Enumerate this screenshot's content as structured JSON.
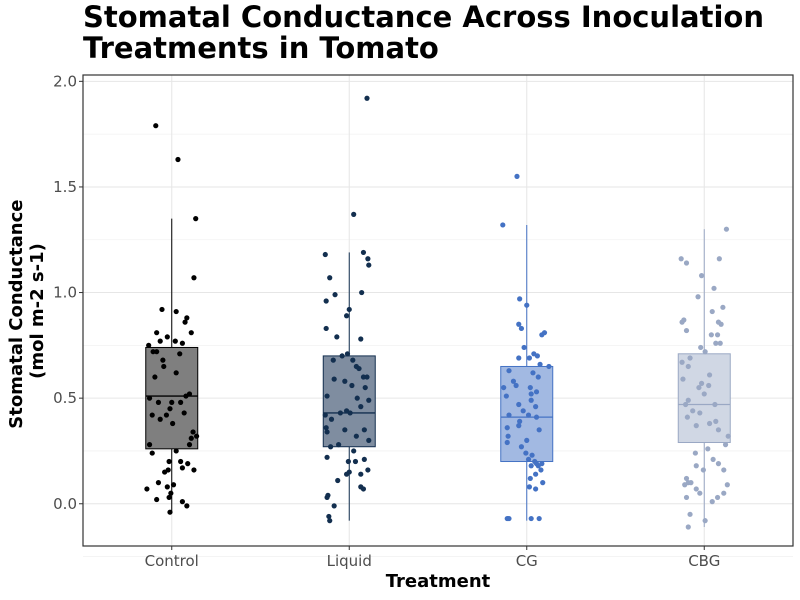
{
  "chart_data": {
    "type": "box",
    "title": "Stomatal Conductance Across Inoculation Treatments in Tomato",
    "xlabel": "Treatment",
    "ylabel": [
      "Stomatal Conductance",
      "(mol m-2 s-1)"
    ],
    "ylim": [
      -0.2,
      2.03
    ],
    "yticks": [
      0.0,
      0.5,
      1.0,
      1.5,
      2.0
    ],
    "ytick_labels": [
      "0.0",
      "0.5",
      "1.0",
      "1.5",
      "2.0"
    ],
    "grid": true,
    "legend": "none",
    "categories": [
      "Control",
      "Liquid",
      "CG",
      "CBG"
    ],
    "series": [
      {
        "color": "#000000",
        "box_fill": "#7f7f7f",
        "line": "#000000",
        "q1": 0.26,
        "median": 0.51,
        "q3": 0.74,
        "whisker_low": -0.04,
        "whisker_high": 1.35,
        "points": [
          {
            "x": -0.18,
            "y": 1.79
          },
          {
            "x": 0.07,
            "y": 1.63
          },
          {
            "x": 0.27,
            "y": 1.35
          },
          {
            "x": 0.25,
            "y": 1.07
          },
          {
            "x": -0.11,
            "y": 0.92
          },
          {
            "x": 0.05,
            "y": 0.91
          },
          {
            "x": 0.17,
            "y": 0.88
          },
          {
            "x": 0.15,
            "y": 0.86
          },
          {
            "x": 0.22,
            "y": 0.81
          },
          {
            "x": -0.17,
            "y": 0.81
          },
          {
            "x": -0.05,
            "y": 0.79
          },
          {
            "x": -0.13,
            "y": 0.77
          },
          {
            "x": 0.04,
            "y": 0.77
          },
          {
            "x": 0.12,
            "y": 0.76
          },
          {
            "x": -0.26,
            "y": 0.75
          },
          {
            "x": 0.09,
            "y": 0.71
          },
          {
            "x": -0.21,
            "y": 0.72
          },
          {
            "x": -0.17,
            "y": 0.72
          },
          {
            "x": -0.1,
            "y": 0.68
          },
          {
            "x": -0.09,
            "y": 0.65
          },
          {
            "x": 0.05,
            "y": 0.62
          },
          {
            "x": -0.19,
            "y": 0.6
          },
          {
            "x": 0.2,
            "y": 0.52
          },
          {
            "x": 0.16,
            "y": 0.51
          },
          {
            "x": -0.25,
            "y": 0.5
          },
          {
            "x": -0.15,
            "y": 0.48
          },
          {
            "x": 0.0,
            "y": 0.48
          },
          {
            "x": 0.1,
            "y": 0.48
          },
          {
            "x": -0.02,
            "y": 0.45
          },
          {
            "x": -0.22,
            "y": 0.42
          },
          {
            "x": 0.14,
            "y": 0.43
          },
          {
            "x": -0.06,
            "y": 0.42
          },
          {
            "x": -0.13,
            "y": 0.4
          },
          {
            "x": 0.01,
            "y": 0.38
          },
          {
            "x": 0.24,
            "y": 0.34
          },
          {
            "x": 0.28,
            "y": 0.32
          },
          {
            "x": 0.22,
            "y": 0.31
          },
          {
            "x": -0.25,
            "y": 0.28
          },
          {
            "x": 0.2,
            "y": 0.28
          },
          {
            "x": 0.05,
            "y": 0.25
          },
          {
            "x": -0.22,
            "y": 0.24
          },
          {
            "x": -0.03,
            "y": 0.2
          },
          {
            "x": 0.1,
            "y": 0.2
          },
          {
            "x": 0.18,
            "y": 0.19
          },
          {
            "x": -0.04,
            "y": 0.16
          },
          {
            "x": 0.12,
            "y": 0.17
          },
          {
            "x": 0.25,
            "y": 0.16
          },
          {
            "x": -0.08,
            "y": 0.15
          },
          {
            "x": -0.15,
            "y": 0.1
          },
          {
            "x": -0.05,
            "y": 0.08
          },
          {
            "x": 0.02,
            "y": 0.09
          },
          {
            "x": -0.28,
            "y": 0.07
          },
          {
            "x": -0.01,
            "y": 0.05
          },
          {
            "x": -0.03,
            "y": 0.03
          },
          {
            "x": -0.17,
            "y": 0.02
          },
          {
            "x": -0.02,
            "y": -0.04
          },
          {
            "x": 0.17,
            "y": -0.01
          },
          {
            "x": 0.12,
            "y": 0.01
          }
        ]
      },
      {
        "color": "#132f4f",
        "box_fill": "#7f8da0",
        "line": "#132f4f",
        "q1": 0.27,
        "median": 0.43,
        "q3": 0.7,
        "whisker_low": -0.08,
        "whisker_high": 1.19,
        "points": [
          {
            "x": 0.2,
            "y": 1.92
          },
          {
            "x": 0.05,
            "y": 1.37
          },
          {
            "x": -0.27,
            "y": 1.18
          },
          {
            "x": 0.16,
            "y": 1.19
          },
          {
            "x": 0.21,
            "y": 1.16
          },
          {
            "x": 0.22,
            "y": 1.13
          },
          {
            "x": -0.22,
            "y": 1.07
          },
          {
            "x": 0.14,
            "y": 1.0
          },
          {
            "x": -0.16,
            "y": 0.99
          },
          {
            "x": -0.26,
            "y": 0.96
          },
          {
            "x": 0.0,
            "y": 0.92
          },
          {
            "x": -0.03,
            "y": 0.89
          },
          {
            "x": -0.26,
            "y": 0.83
          },
          {
            "x": 0.13,
            "y": 0.78
          },
          {
            "x": -0.14,
            "y": 0.79
          },
          {
            "x": -0.02,
            "y": 0.71
          },
          {
            "x": -0.08,
            "y": 0.7
          },
          {
            "x": 0.04,
            "y": 0.68
          },
          {
            "x": -0.18,
            "y": 0.68
          },
          {
            "x": 0.08,
            "y": 0.65
          },
          {
            "x": 0.11,
            "y": 0.64
          },
          {
            "x": 0.2,
            "y": 0.6
          },
          {
            "x": 0.16,
            "y": 0.6
          },
          {
            "x": -0.17,
            "y": 0.59
          },
          {
            "x": -0.05,
            "y": 0.58
          },
          {
            "x": 0.03,
            "y": 0.56
          },
          {
            "x": 0.18,
            "y": 0.55
          },
          {
            "x": -0.25,
            "y": 0.51
          },
          {
            "x": 0.09,
            "y": 0.5
          },
          {
            "x": 0.22,
            "y": 0.49
          },
          {
            "x": 0.13,
            "y": 0.46
          },
          {
            "x": -0.03,
            "y": 0.44
          },
          {
            "x": -0.1,
            "y": 0.43
          },
          {
            "x": 0.01,
            "y": 0.43
          },
          {
            "x": -0.27,
            "y": 0.42
          },
          {
            "x": -0.2,
            "y": 0.4
          },
          {
            "x": -0.26,
            "y": 0.36
          },
          {
            "x": 0.17,
            "y": 0.35
          },
          {
            "x": -0.05,
            "y": 0.35
          },
          {
            "x": -0.25,
            "y": 0.34
          },
          {
            "x": 0.08,
            "y": 0.32
          },
          {
            "x": 0.22,
            "y": 0.3
          },
          {
            "x": -0.12,
            "y": 0.28
          },
          {
            "x": -0.21,
            "y": 0.27
          },
          {
            "x": 0.05,
            "y": 0.25
          },
          {
            "x": -0.25,
            "y": 0.22
          },
          {
            "x": 0.17,
            "y": 0.21
          },
          {
            "x": 0.07,
            "y": 0.2
          },
          {
            "x": -0.01,
            "y": 0.2
          },
          {
            "x": 0.21,
            "y": 0.16
          },
          {
            "x": 0.0,
            "y": 0.15
          },
          {
            "x": -0.03,
            "y": 0.14
          },
          {
            "x": 0.13,
            "y": 0.14
          },
          {
            "x": -0.13,
            "y": 0.11
          },
          {
            "x": 0.13,
            "y": 0.08
          },
          {
            "x": 0.16,
            "y": 0.07
          },
          {
            "x": -0.24,
            "y": 0.04
          },
          {
            "x": -0.25,
            "y": 0.03
          },
          {
            "x": -0.17,
            "y": -0.01
          },
          {
            "x": -0.23,
            "y": -0.06
          },
          {
            "x": -0.22,
            "y": -0.08
          }
        ]
      },
      {
        "color": "#4472c4",
        "box_fill": "#a2b9e2",
        "line": "#4472c4",
        "q1": 0.2,
        "median": 0.41,
        "q3": 0.65,
        "whisker_low": -0.08,
        "whisker_high": 1.32,
        "points": [
          {
            "x": -0.11,
            "y": 1.55
          },
          {
            "x": -0.27,
            "y": 1.32
          },
          {
            "x": -0.08,
            "y": 0.97
          },
          {
            "x": 0.0,
            "y": 0.94
          },
          {
            "x": 0.2,
            "y": 0.81
          },
          {
            "x": 0.17,
            "y": 0.8
          },
          {
            "x": -0.06,
            "y": 0.83
          },
          {
            "x": -0.09,
            "y": 0.85
          },
          {
            "x": -0.03,
            "y": 0.74
          },
          {
            "x": 0.08,
            "y": 0.71
          },
          {
            "x": 0.12,
            "y": 0.7
          },
          {
            "x": -0.09,
            "y": 0.69
          },
          {
            "x": 0.03,
            "y": 0.69
          },
          {
            "x": 0.15,
            "y": 0.66
          },
          {
            "x": 0.25,
            "y": 0.65
          },
          {
            "x": -0.2,
            "y": 0.63
          },
          {
            "x": 0.07,
            "y": 0.62
          },
          {
            "x": 0.13,
            "y": 0.6
          },
          {
            "x": -0.15,
            "y": 0.58
          },
          {
            "x": -0.12,
            "y": 0.56
          },
          {
            "x": -0.26,
            "y": 0.55
          },
          {
            "x": 0.04,
            "y": 0.55
          },
          {
            "x": 0.11,
            "y": 0.53
          },
          {
            "x": 0.05,
            "y": 0.52
          },
          {
            "x": -0.23,
            "y": 0.51
          },
          {
            "x": 0.05,
            "y": 0.49
          },
          {
            "x": -0.09,
            "y": 0.47
          },
          {
            "x": 0.1,
            "y": 0.46
          },
          {
            "x": -0.04,
            "y": 0.44
          },
          {
            "x": 0.02,
            "y": 0.42
          },
          {
            "x": -0.2,
            "y": 0.42
          },
          {
            "x": 0.11,
            "y": 0.41
          },
          {
            "x": -0.08,
            "y": 0.39
          },
          {
            "x": -0.09,
            "y": 0.37
          },
          {
            "x": -0.22,
            "y": 0.36
          },
          {
            "x": 0.14,
            "y": 0.35
          },
          {
            "x": -0.21,
            "y": 0.32
          },
          {
            "x": 0.0,
            "y": 0.3
          },
          {
            "x": -0.22,
            "y": 0.29
          },
          {
            "x": -0.06,
            "y": 0.27
          },
          {
            "x": -0.01,
            "y": 0.24
          },
          {
            "x": 0.06,
            "y": 0.23
          },
          {
            "x": 0.02,
            "y": 0.21
          },
          {
            "x": 0.09,
            "y": 0.2
          },
          {
            "x": 0.11,
            "y": 0.19
          },
          {
            "x": 0.17,
            "y": 0.19
          },
          {
            "x": 0.05,
            "y": 0.18
          },
          {
            "x": 0.13,
            "y": 0.18
          },
          {
            "x": 0.16,
            "y": 0.16
          },
          {
            "x": 0.1,
            "y": 0.14
          },
          {
            "x": 0.04,
            "y": 0.12
          },
          {
            "x": 0.18,
            "y": 0.1
          },
          {
            "x": 0.03,
            "y": 0.08
          },
          {
            "x": 0.1,
            "y": 0.07
          },
          {
            "x": -0.22,
            "y": -0.07
          },
          {
            "x": -0.2,
            "y": -0.07
          },
          {
            "x": 0.05,
            "y": -0.07
          },
          {
            "x": 0.14,
            "y": -0.07
          }
        ]
      },
      {
        "color": "#9aa8c4",
        "box_fill": "#d0d7e4",
        "line": "#9aa8c4",
        "q1": 0.29,
        "median": 0.47,
        "q3": 0.71,
        "whisker_low": -0.11,
        "whisker_high": 1.3,
        "points": [
          {
            "x": 0.25,
            "y": 1.3
          },
          {
            "x": -0.26,
            "y": 1.16
          },
          {
            "x": -0.2,
            "y": 1.14
          },
          {
            "x": 0.17,
            "y": 1.16
          },
          {
            "x": -0.03,
            "y": 1.08
          },
          {
            "x": 0.11,
            "y": 1.02
          },
          {
            "x": -0.07,
            "y": 0.98
          },
          {
            "x": 0.21,
            "y": 0.93
          },
          {
            "x": 0.09,
            "y": 0.91
          },
          {
            "x": -0.23,
            "y": 0.87
          },
          {
            "x": -0.25,
            "y": 0.86
          },
          {
            "x": 0.16,
            "y": 0.86
          },
          {
            "x": 0.19,
            "y": 0.85
          },
          {
            "x": -0.2,
            "y": 0.82
          },
          {
            "x": 0.08,
            "y": 0.8
          },
          {
            "x": 0.15,
            "y": 0.8
          },
          {
            "x": 0.13,
            "y": 0.76
          },
          {
            "x": 0.18,
            "y": 0.76
          },
          {
            "x": -0.04,
            "y": 0.74
          },
          {
            "x": 0.01,
            "y": 0.72
          },
          {
            "x": -0.16,
            "y": 0.69
          },
          {
            "x": -0.25,
            "y": 0.67
          },
          {
            "x": -0.18,
            "y": 0.65
          },
          {
            "x": 0.06,
            "y": 0.61
          },
          {
            "x": -0.24,
            "y": 0.59
          },
          {
            "x": -0.03,
            "y": 0.57
          },
          {
            "x": 0.05,
            "y": 0.56
          },
          {
            "x": -0.06,
            "y": 0.55
          },
          {
            "x": 0.0,
            "y": 0.52
          },
          {
            "x": -0.18,
            "y": 0.49
          },
          {
            "x": -0.21,
            "y": 0.47
          },
          {
            "x": 0.12,
            "y": 0.47
          },
          {
            "x": -0.13,
            "y": 0.44
          },
          {
            "x": -0.05,
            "y": 0.43
          },
          {
            "x": -0.19,
            "y": 0.41
          },
          {
            "x": 0.13,
            "y": 0.39
          },
          {
            "x": 0.06,
            "y": 0.38
          },
          {
            "x": -0.09,
            "y": 0.37
          },
          {
            "x": 0.16,
            "y": 0.35
          },
          {
            "x": 0.27,
            "y": 0.32
          },
          {
            "x": 0.24,
            "y": 0.28
          },
          {
            "x": 0.04,
            "y": 0.26
          },
          {
            "x": -0.1,
            "y": 0.24
          },
          {
            "x": 0.1,
            "y": 0.21
          },
          {
            "x": 0.16,
            "y": 0.19
          },
          {
            "x": -0.09,
            "y": 0.18
          },
          {
            "x": -0.01,
            "y": 0.16
          },
          {
            "x": 0.22,
            "y": 0.16
          },
          {
            "x": -0.2,
            "y": 0.12
          },
          {
            "x": -0.18,
            "y": 0.1
          },
          {
            "x": -0.15,
            "y": 0.1
          },
          {
            "x": -0.22,
            "y": 0.09
          },
          {
            "x": 0.26,
            "y": 0.09
          },
          {
            "x": -0.09,
            "y": 0.07
          },
          {
            "x": -0.05,
            "y": 0.05
          },
          {
            "x": -0.2,
            "y": 0.03
          },
          {
            "x": 0.15,
            "y": 0.03
          },
          {
            "x": 0.22,
            "y": 0.05
          },
          {
            "x": 0.09,
            "y": 0.01
          },
          {
            "x": -0.16,
            "y": -0.05
          },
          {
            "x": 0.01,
            "y": -0.08
          },
          {
            "x": -0.18,
            "y": -0.11
          }
        ]
      }
    ]
  }
}
